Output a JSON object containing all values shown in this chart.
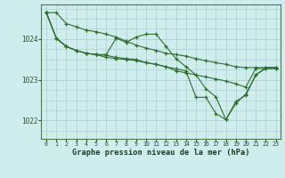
{
  "background_color": "#d0eded",
  "grid_color": "#a8cccc",
  "line_color": "#2d6e2d",
  "xlabel": "Graphe pression niveau de la mer (hPa)",
  "ylim": [
    1021.55,
    1024.85
  ],
  "xlim": [
    -0.5,
    23.5
  ],
  "yticks": [
    1022,
    1023,
    1024
  ],
  "xticks": [
    0,
    1,
    2,
    3,
    4,
    5,
    6,
    7,
    8,
    9,
    10,
    11,
    12,
    13,
    14,
    15,
    16,
    17,
    18,
    19,
    20,
    21,
    22,
    23
  ],
  "series": [
    [
      1024.65,
      1024.65,
      1024.38,
      1024.3,
      1024.22,
      1024.18,
      1024.12,
      1024.05,
      1023.95,
      1023.85,
      1023.78,
      1023.72,
      1023.65,
      1023.62,
      1023.58,
      1023.52,
      1023.47,
      1023.42,
      1023.38,
      1023.32,
      1023.3,
      1023.3,
      1023.3,
      1023.3
    ],
    [
      1024.65,
      1024.02,
      1023.82,
      1023.72,
      1023.65,
      1023.62,
      1023.62,
      1024.02,
      1023.92,
      1024.05,
      1024.12,
      1024.12,
      1023.82,
      1023.52,
      1023.32,
      1023.12,
      1022.78,
      1022.58,
      1022.02,
      1022.42,
      1022.65,
      1023.12,
      1023.28,
      1023.28
    ],
    [
      1024.65,
      1024.02,
      1023.82,
      1023.72,
      1023.65,
      1023.62,
      1023.6,
      1023.55,
      1023.52,
      1023.5,
      1023.42,
      1023.38,
      1023.32,
      1023.22,
      1023.17,
      1023.12,
      1023.07,
      1023.02,
      1022.97,
      1022.9,
      1022.82,
      1023.28,
      1023.28,
      1023.28
    ],
    [
      1024.65,
      1024.02,
      1023.82,
      1023.72,
      1023.65,
      1023.62,
      1023.55,
      1023.52,
      1023.5,
      1023.47,
      1023.42,
      1023.38,
      1023.32,
      1023.27,
      1023.22,
      1022.57,
      1022.57,
      1022.17,
      1022.02,
      1022.47,
      1022.62,
      1023.12,
      1023.3,
      1023.3
    ]
  ]
}
